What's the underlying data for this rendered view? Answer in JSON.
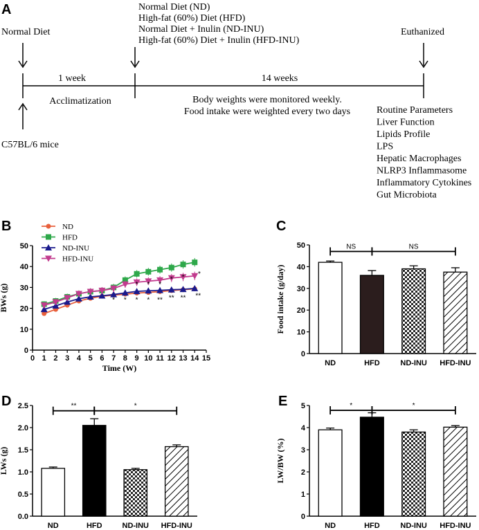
{
  "panelA": {
    "letter": "A",
    "left_label": "Normal Diet",
    "mice_label": "C57BL/6 mice",
    "week1_label": "1 week",
    "acclim_label": "Acclimatization",
    "diets": [
      "Normal Diet (ND)",
      "High-fat (60%) Diet (HFD)",
      "Normal Diet + Inulin (ND-INU)",
      "High-fat (60%) Diet + Inulin  (HFD-INU)"
    ],
    "weeks14_label": "14 weeks",
    "monitor_lines": [
      "Body weights were monitored weekly.",
      "Food intake were  weighted every two days"
    ],
    "euth_label": "Euthanized",
    "measures": [
      "Routine Parameters",
      "Liver Function",
      "Lipids Profile",
      "LPS",
      "Hepatic Macrophages",
      "NLRP3 Inflammasome",
      "Inflammatory Cytokines",
      "Gut Microbiota"
    ]
  },
  "chart_data": [
    {
      "id": "B",
      "type": "line",
      "letter": "B",
      "title": "",
      "xlabel": "Time (W)",
      "ylabel": "BWs (g)",
      "xlim": [
        0,
        15
      ],
      "ylim": [
        0,
        50
      ],
      "xticks": [
        "0",
        "1",
        "2",
        "3",
        "4",
        "5",
        "6",
        "7",
        "8",
        "9",
        "10",
        "11",
        "12",
        "13",
        "14",
        "15"
      ],
      "yticks": [
        "0",
        "10",
        "20",
        "30",
        "40",
        "50"
      ],
      "x": [
        1,
        2,
        3,
        4,
        5,
        6,
        7,
        8,
        9,
        10,
        11,
        12,
        13,
        14
      ],
      "series": [
        {
          "name": "ND",
          "color": "#e8603c",
          "marker": "circle",
          "values": [
            17.5,
            19.5,
            21.5,
            23.5,
            24.8,
            25.8,
            26.3,
            26.8,
            27.3,
            27.6,
            28.0,
            28.5,
            28.9,
            29.3
          ]
        },
        {
          "name": "HFD",
          "color": "#2ea84a",
          "marker": "square",
          "values": [
            22,
            23.5,
            25.5,
            27,
            28,
            28.5,
            30,
            33.5,
            36.5,
            37.5,
            38.5,
            39.5,
            41,
            42
          ]
        },
        {
          "name": "ND-INU",
          "color": "#1a1a8c",
          "marker": "triangle",
          "values": [
            19.5,
            21.2,
            23,
            24.6,
            25.5,
            26,
            26.6,
            27.4,
            28.1,
            28.4,
            28.6,
            28.9,
            29.1,
            29.5
          ]
        },
        {
          "name": "HFD-INU",
          "color": "#c23b8e",
          "marker": "triangle-down",
          "values": [
            21.5,
            23,
            25,
            27,
            28,
            28.5,
            29.5,
            31.5,
            32.5,
            33,
            33.5,
            34.5,
            35,
            35.5
          ]
        }
      ],
      "annotations": [
        {
          "x": 9,
          "y": 30.5,
          "text": "*"
        },
        {
          "x": 10,
          "y": 30.5,
          "text": "*"
        },
        {
          "x": 11,
          "y": 30.5,
          "text": "*"
        },
        {
          "x": 12,
          "y": 33,
          "text": "*"
        },
        {
          "x": 13,
          "y": 34,
          "text": "*"
        },
        {
          "x": 14.4,
          "y": 35.5,
          "text": "*"
        },
        {
          "x": 7,
          "y": 23,
          "text": "*"
        },
        {
          "x": 8,
          "y": 23,
          "text": "*"
        },
        {
          "x": 9,
          "y": 23,
          "text": "*"
        },
        {
          "x": 10,
          "y": 23,
          "text": "*"
        },
        {
          "x": 11,
          "y": 23,
          "text": "**"
        },
        {
          "x": 12,
          "y": 24,
          "text": "**"
        },
        {
          "x": 13,
          "y": 24,
          "text": "**"
        },
        {
          "x": 14.3,
          "y": 25,
          "text": "**"
        }
      ],
      "legend": "top-left"
    },
    {
      "id": "C",
      "type": "bar",
      "letter": "C",
      "title": "",
      "xlabel": "",
      "ylabel": "Food intake (g/day)",
      "ylim": [
        0,
        50
      ],
      "yticks": [
        "0",
        "10",
        "20",
        "30",
        "40",
        "50"
      ],
      "categories": [
        "ND",
        "HFD",
        "ND-INU",
        "HFD-INU"
      ],
      "values": [
        42,
        36,
        39,
        37.5
      ],
      "errors": [
        0.6,
        2.2,
        1.4,
        2.0
      ],
      "patterns": [
        "white",
        "dark",
        "check",
        "hatch"
      ],
      "significance": [
        {
          "from": 0,
          "to": 1,
          "y": 47,
          "label": "NS"
        },
        {
          "from": 1,
          "to": 3,
          "y": 47,
          "label": "NS"
        }
      ]
    },
    {
      "id": "D",
      "type": "bar",
      "letter": "D",
      "title": "",
      "xlabel": "",
      "ylabel": "LWs (g)",
      "ylim": [
        0,
        2.5
      ],
      "yticks": [
        "0.0",
        "0.5",
        "1.0",
        "1.5",
        "2.0",
        "2.5"
      ],
      "categories": [
        "ND",
        "HFD",
        "ND-INU",
        "HFD-INU"
      ],
      "values": [
        1.08,
        2.05,
        1.05,
        1.57
      ],
      "errors": [
        0.03,
        0.15,
        0.03,
        0.04
      ],
      "patterns": [
        "white",
        "black",
        "check",
        "hatch"
      ],
      "significance": [
        {
          "from": 0,
          "to": 1,
          "y": 2.38,
          "label": "**"
        },
        {
          "from": 1,
          "to": 3,
          "y": 2.38,
          "label": "*"
        }
      ]
    },
    {
      "id": "E",
      "type": "bar",
      "letter": "E",
      "title": "",
      "xlabel": "",
      "ylabel": "LW/BW (%)",
      "ylim": [
        0,
        5
      ],
      "yticks": [
        "0",
        "1",
        "2",
        "3",
        "4",
        "5"
      ],
      "categories": [
        "ND",
        "HFD",
        "ND-INU",
        "HFD-INU"
      ],
      "values": [
        3.9,
        4.47,
        3.8,
        4.02
      ],
      "errors": [
        0.08,
        0.2,
        0.1,
        0.07
      ],
      "patterns": [
        "white",
        "black",
        "check",
        "hatch"
      ],
      "significance": [
        {
          "from": 0,
          "to": 1,
          "y": 4.78,
          "label": "*"
        },
        {
          "from": 1,
          "to": 3,
          "y": 4.78,
          "label": "*"
        }
      ]
    }
  ]
}
